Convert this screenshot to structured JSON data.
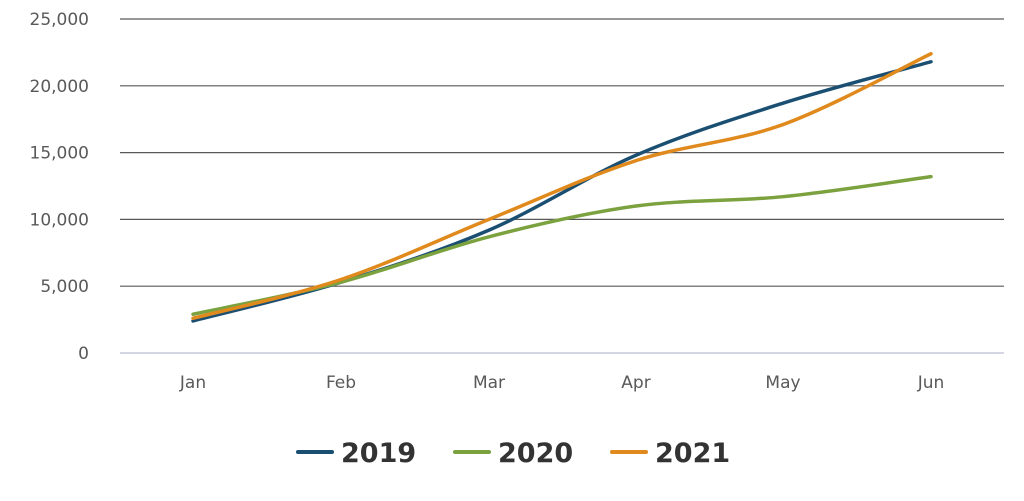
{
  "chart_data": {
    "type": "line",
    "categories": [
      "Jan",
      "Feb",
      "Mar",
      "Apr",
      "May",
      "Jun"
    ],
    "ylim": [
      0,
      25000
    ],
    "yticks": [
      0,
      5000,
      10000,
      15000,
      20000,
      25000
    ],
    "ytick_labels": [
      "0",
      "5,000",
      "10,000",
      "15,000",
      "20,000",
      "25,000"
    ],
    "grid": true,
    "legend_position": "bottom",
    "series": [
      {
        "name": "2019",
        "color": "#1b4f72",
        "values": [
          2400,
          5300,
          9200,
          14800,
          18700,
          21800
        ]
      },
      {
        "name": "2020",
        "color": "#7ba23f",
        "values": [
          2900,
          5300,
          8700,
          11000,
          11700,
          13200
        ]
      },
      {
        "name": "2021",
        "color": "#e08a1e",
        "values": [
          2600,
          5500,
          10000,
          14400,
          17100,
          22400
        ]
      }
    ]
  }
}
